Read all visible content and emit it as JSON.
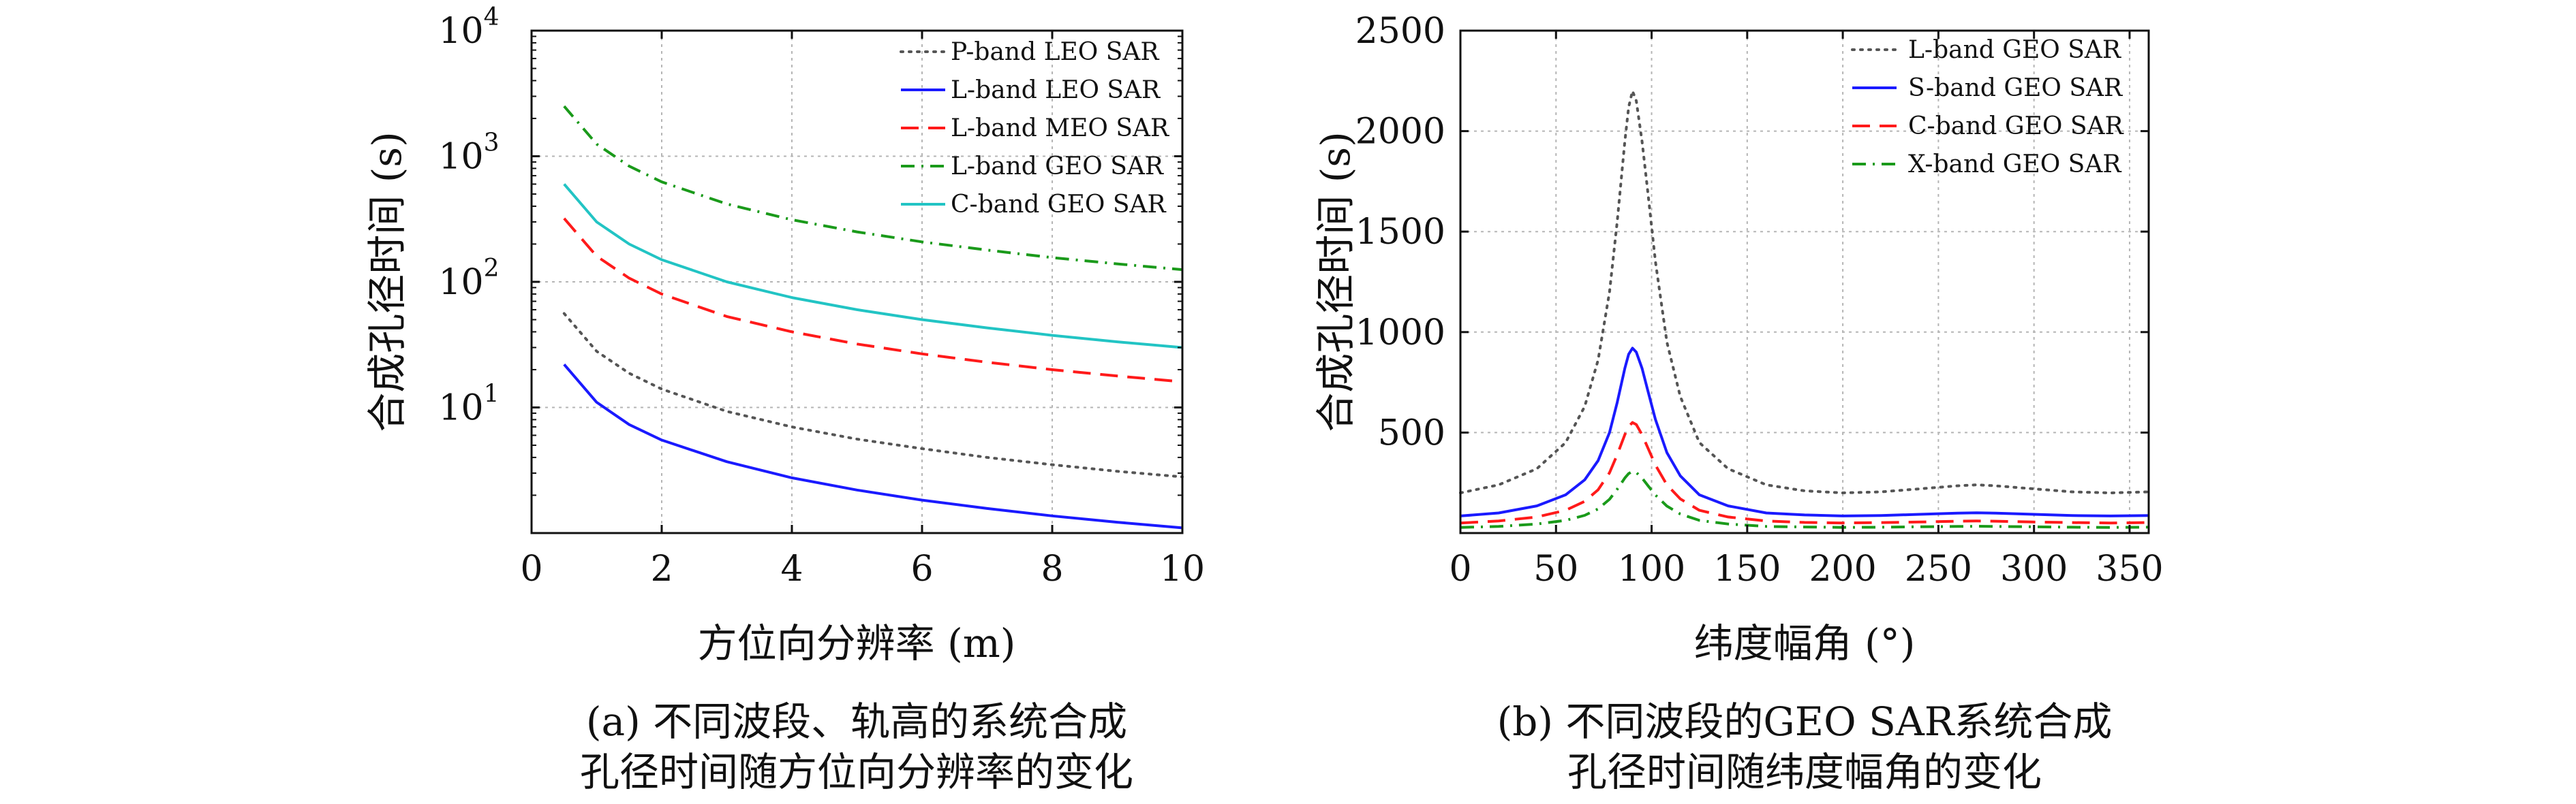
{
  "chart_data": [
    {
      "type": "line",
      "panel": "a",
      "xlabel": "方位向分辨率 (m)",
      "ylabel": "合成孔径时间 (s)",
      "xlim": [
        0,
        10
      ],
      "ylim": [
        1,
        10000
      ],
      "yscale": "log",
      "xticks": [
        0,
        2,
        4,
        6,
        8,
        10
      ],
      "yticks": [
        {
          "value": 10,
          "base": "10",
          "exp": "1"
        },
        {
          "value": 100,
          "base": "10",
          "exp": "2"
        },
        {
          "value": 1000,
          "base": "10",
          "exp": "3"
        },
        {
          "value": 10000,
          "base": "10",
          "exp": "4"
        }
      ],
      "grid": true,
      "legend_position": "top-right",
      "caption_lines": [
        "(a) 不同波段、轨高的系统合成",
        "孔径时间随方位向分辨率的变化"
      ],
      "series": [
        {
          "name": "P-band LEO SAR",
          "color": "#555555",
          "dash": "dotted",
          "x": [
            0.5,
            1,
            1.5,
            2,
            3,
            4,
            5,
            6,
            7,
            8,
            9,
            10
          ],
          "y": [
            56,
            28,
            18.7,
            14,
            9.3,
            7,
            5.6,
            4.7,
            4.0,
            3.5,
            3.1,
            2.8
          ]
        },
        {
          "name": "L-band LEO SAR",
          "color": "#1a1aff",
          "dash": "solid",
          "x": [
            0.5,
            1,
            1.5,
            2,
            3,
            4,
            5,
            6,
            7,
            8,
            9,
            10
          ],
          "y": [
            22,
            11,
            7.3,
            5.5,
            3.7,
            2.75,
            2.2,
            1.83,
            1.57,
            1.37,
            1.22,
            1.1
          ]
        },
        {
          "name": "L-band MEO SAR",
          "color": "#ff1a1a",
          "dash": "dashed",
          "x": [
            0.5,
            1,
            1.5,
            2,
            3,
            4,
            5,
            6,
            7,
            8,
            9,
            10
          ],
          "y": [
            320,
            160,
            107,
            80,
            53,
            40,
            32,
            26.7,
            22.9,
            20,
            17.8,
            16
          ]
        },
        {
          "name": "L-band GEO SAR",
          "color": "#1a9a1a",
          "dash": "dashdot",
          "x": [
            0.5,
            1,
            1.5,
            2,
            3,
            4,
            5,
            6,
            7,
            8,
            9,
            10
          ],
          "y": [
            2500,
            1250,
            833,
            625,
            417,
            312,
            250,
            208,
            179,
            156,
            139,
            125
          ]
        },
        {
          "name": "C-band GEO SAR",
          "color": "#22c4c4",
          "dash": "solid",
          "x": [
            0.5,
            1,
            1.5,
            2,
            3,
            4,
            5,
            6,
            7,
            8,
            9,
            10
          ],
          "y": [
            600,
            300,
            200,
            150,
            100,
            75,
            60,
            50,
            43,
            37.5,
            33.3,
            30
          ]
        }
      ]
    },
    {
      "type": "line",
      "panel": "b",
      "xlabel": "纬度幅角 (°)",
      "ylabel": "合成孔径时间 (s)",
      "xlim": [
        0,
        360
      ],
      "ylim": [
        0,
        2500
      ],
      "yscale": "linear",
      "xticks": [
        0,
        50,
        100,
        150,
        200,
        250,
        300,
        350
      ],
      "yticks": [
        500,
        1000,
        1500,
        2000,
        2500
      ],
      "grid": true,
      "legend_position": "top-right",
      "caption_lines": [
        "(b) 不同波段的GEO SAR系统合成",
        "孔径时间随纬度幅角的变化"
      ],
      "series": [
        {
          "name": "L-band GEO SAR",
          "color": "#555555",
          "dash": "dotted",
          "x": [
            0,
            20,
            40,
            55,
            65,
            72,
            78,
            82,
            86,
            88,
            90,
            92,
            95,
            98,
            102,
            108,
            115,
            125,
            140,
            160,
            180,
            200,
            220,
            240,
            260,
            270,
            280,
            300,
            320,
            340,
            360
          ],
          "y": [
            200,
            240,
            320,
            450,
            630,
            860,
            1200,
            1550,
            1950,
            2120,
            2200,
            2150,
            1950,
            1700,
            1350,
            950,
            680,
            450,
            320,
            240,
            210,
            200,
            205,
            220,
            235,
            240,
            235,
            220,
            205,
            200,
            205
          ]
        },
        {
          "name": "S-band GEO SAR",
          "color": "#1a1aff",
          "dash": "solid",
          "x": [
            0,
            20,
            40,
            55,
            65,
            72,
            78,
            82,
            86,
            88,
            90,
            92,
            95,
            98,
            102,
            108,
            115,
            125,
            140,
            160,
            180,
            200,
            220,
            240,
            260,
            270,
            280,
            300,
            320,
            340,
            360
          ],
          "y": [
            85,
            100,
            135,
            190,
            265,
            360,
            500,
            650,
            820,
            890,
            920,
            900,
            820,
            710,
            565,
            400,
            285,
            190,
            135,
            100,
            90,
            85,
            87,
            93,
            99,
            101,
            99,
            93,
            87,
            85,
            87
          ]
        },
        {
          "name": "C-band GEO SAR",
          "color": "#ff1a1a",
          "dash": "dashed",
          "x": [
            0,
            20,
            40,
            55,
            65,
            72,
            78,
            82,
            86,
            88,
            90,
            92,
            95,
            98,
            102,
            108,
            115,
            125,
            140,
            160,
            180,
            200,
            220,
            240,
            260,
            270,
            280,
            300,
            320,
            340,
            360
          ],
          "y": [
            50,
            60,
            80,
            113,
            158,
            215,
            300,
            390,
            490,
            530,
            550,
            540,
            490,
            425,
            338,
            240,
            170,
            113,
            80,
            60,
            53,
            50,
            52,
            55,
            59,
            60,
            59,
            55,
            52,
            50,
            52
          ]
        },
        {
          "name": "X-band GEO SAR",
          "color": "#1a9a1a",
          "dash": "dashdot",
          "x": [
            0,
            20,
            40,
            55,
            65,
            72,
            78,
            82,
            86,
            88,
            90,
            92,
            95,
            98,
            102,
            108,
            115,
            125,
            140,
            160,
            180,
            200,
            220,
            240,
            260,
            270,
            280,
            300,
            320,
            340,
            360
          ],
          "y": [
            28,
            33,
            45,
            63,
            88,
            120,
            168,
            218,
            274,
            296,
            307,
            301,
            274,
            237,
            189,
            134,
            95,
            63,
            45,
            33,
            30,
            28,
            29,
            31,
            33,
            34,
            33,
            31,
            29,
            28,
            29
          ]
        }
      ]
    }
  ]
}
